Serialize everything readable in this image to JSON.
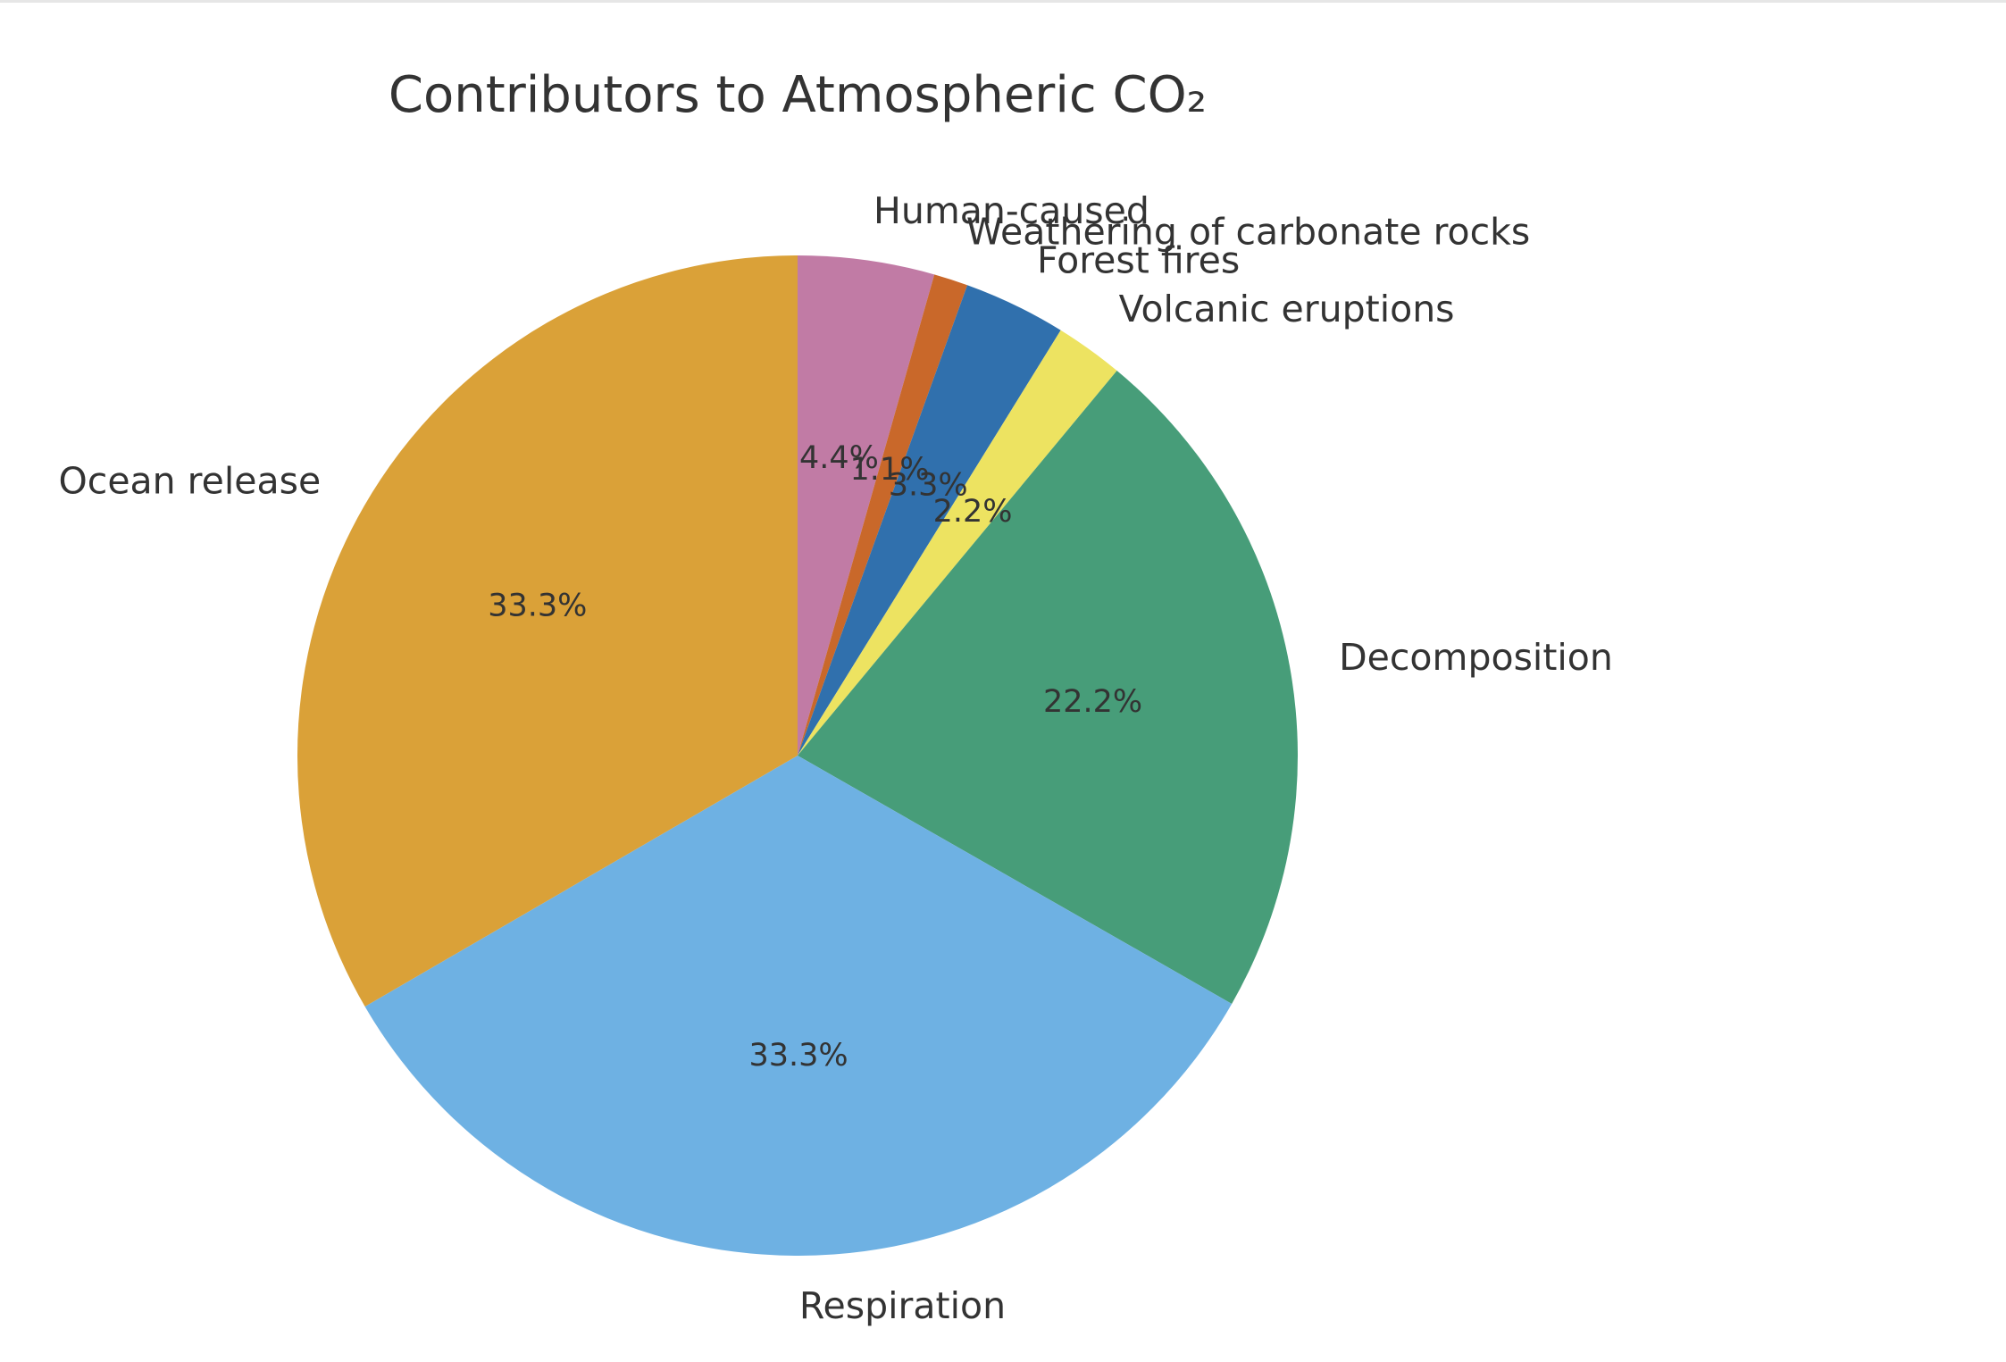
{
  "chart_data": {
    "type": "pie",
    "title": "Contributors to Atmospheric CO₂",
    "start_angle_deg": 90,
    "direction": "clockwise",
    "slices": [
      {
        "label": "Human-caused",
        "value": 4.4,
        "pct_label": "4.4%",
        "color": "#c17ba5"
      },
      {
        "label": "Weathering of carbonate rocks",
        "value": 1.1,
        "pct_label": "1.1%",
        "color": "#c9682a"
      },
      {
        "label": "Forest fires",
        "value": 3.3,
        "pct_label": "3.3%",
        "color": "#3070ad"
      },
      {
        "label": "Volcanic eruptions",
        "value": 2.2,
        "pct_label": "2.2%",
        "color": "#ede361"
      },
      {
        "label": "Decomposition",
        "value": 22.2,
        "pct_label": "22.2%",
        "color": "#479d79"
      },
      {
        "label": "Respiration",
        "value": 33.3,
        "pct_label": "33.3%",
        "color": "#6eb1e3"
      },
      {
        "label": "Ocean release",
        "value": 33.3,
        "pct_label": "33.3%",
        "color": "#daa138"
      }
    ]
  }
}
